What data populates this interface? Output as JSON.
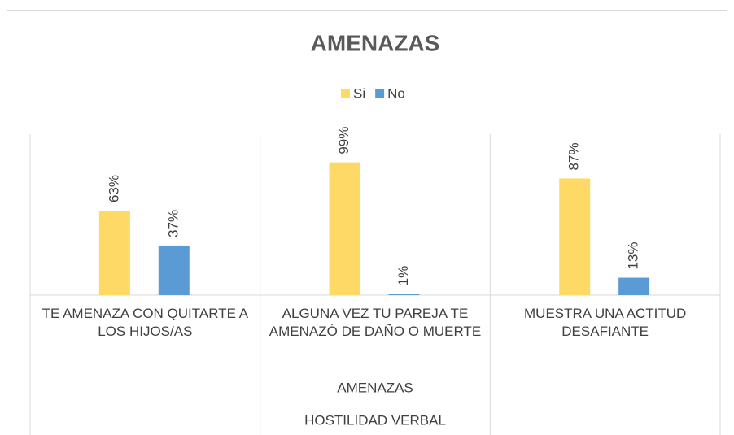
{
  "chart_data": {
    "type": "bar",
    "title": "AMENAZAS",
    "categories": [
      "TE AMENAZA CON QUITARTE A LOS HIJOS/AS",
      "ALGUNA VEZ TU PAREJA TE AMENAZÓ DE DAÑO O MUERTE",
      "MUESTRA UNA ACTITUD DESAFIANTE"
    ],
    "category_levels": [
      "AMENAZAS",
      "HOSTILIDAD VERBAL"
    ],
    "series": [
      {
        "name": "Si",
        "color": "#ffd966",
        "values": [
          63,
          99,
          87
        ],
        "value_labels": [
          "63%",
          "99%",
          "87%"
        ]
      },
      {
        "name": "No",
        "color": "#5b9bd5",
        "values": [
          37,
          1,
          13
        ],
        "value_labels": [
          "37%",
          "1%",
          "13%"
        ]
      }
    ],
    "ylim": [
      0,
      100
    ],
    "legend": "top"
  }
}
